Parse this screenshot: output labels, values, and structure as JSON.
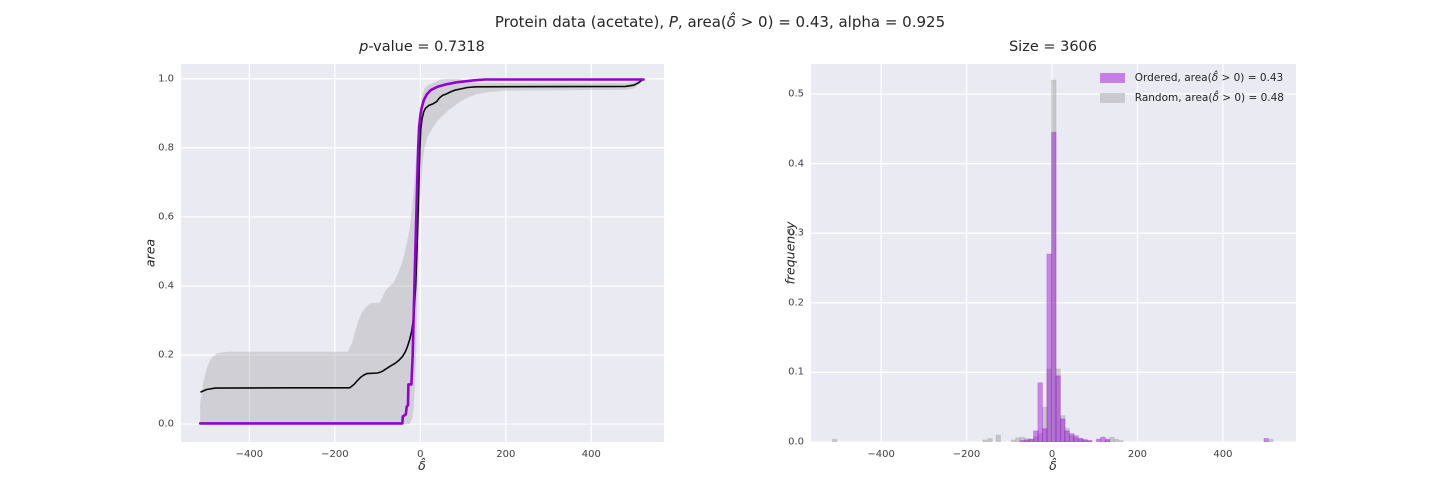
{
  "figure": {
    "suptitle_parts": {
      "pre": "Protein data (acetate), ",
      "var1": "P",
      "mid": ", area(",
      "delta": "δ̂",
      "post": " > 0) = 0.43, alpha = 0.925"
    },
    "background": "#ffffff",
    "axes_background": "#eaeaf2",
    "grid_color": "#ffffff"
  },
  "chart_data": [
    {
      "type": "line",
      "title_parts": {
        "p": "p",
        "rest": "-value = 0.7318"
      },
      "xlabel": "δ̂",
      "ylabel": "area",
      "xlim": [
        -560,
        570
      ],
      "ylim": [
        -0.052,
        1.043
      ],
      "grid": true,
      "x_ticks": [
        {
          "value": -400,
          "label": "−400"
        },
        {
          "value": -200,
          "label": "−200"
        },
        {
          "value": 0,
          "label": "0"
        },
        {
          "value": 200,
          "label": "200"
        },
        {
          "value": 400,
          "label": "400"
        }
      ],
      "y_ticks": [
        {
          "value": 0.0,
          "label": "0.0"
        },
        {
          "value": 0.2,
          "label": "0.2"
        },
        {
          "value": 0.4,
          "label": "0.4"
        },
        {
          "value": 0.6,
          "label": "0.6"
        },
        {
          "value": 0.8,
          "label": "0.8"
        },
        {
          "value": 1.0,
          "label": "1.0"
        }
      ],
      "band": {
        "name": "random-confidence-band",
        "color": "rgba(127,127,127,0.25)",
        "upper": [
          [
            -515,
            0.06
          ],
          [
            -508,
            0.12
          ],
          [
            -500,
            0.16
          ],
          [
            -490,
            0.19
          ],
          [
            -475,
            0.205
          ],
          [
            -450,
            0.21
          ],
          [
            -170,
            0.21
          ],
          [
            -160,
            0.235
          ],
          [
            -152,
            0.27
          ],
          [
            -145,
            0.3
          ],
          [
            -138,
            0.32
          ],
          [
            -130,
            0.335
          ],
          [
            -122,
            0.345
          ],
          [
            -115,
            0.35
          ],
          [
            -95,
            0.352
          ],
          [
            -88,
            0.37
          ],
          [
            -80,
            0.39
          ],
          [
            -72,
            0.4
          ],
          [
            -62,
            0.41
          ],
          [
            -55,
            0.43
          ],
          [
            -48,
            0.45
          ],
          [
            -42,
            0.47
          ],
          [
            -36,
            0.5
          ],
          [
            -30,
            0.535
          ],
          [
            -25,
            0.565
          ],
          [
            -20,
            0.62
          ],
          [
            -16,
            0.67
          ],
          [
            -12,
            0.73
          ],
          [
            -8,
            0.8
          ],
          [
            -4,
            0.87
          ],
          [
            0,
            0.915
          ],
          [
            5,
            0.955
          ],
          [
            10,
            0.972
          ],
          [
            18,
            0.982
          ],
          [
            30,
            0.988
          ],
          [
            45,
            0.997
          ],
          [
            60,
            1.0
          ],
          [
            90,
            1.0
          ],
          [
            110,
            0.993
          ],
          [
            130,
            0.988
          ],
          [
            480,
            0.988
          ],
          [
            500,
            0.99
          ],
          [
            515,
            1.0
          ],
          [
            522,
            1.0
          ]
        ],
        "lower": [
          [
            -515,
            0.0
          ],
          [
            -25,
            0.0
          ],
          [
            -18,
            0.02
          ],
          [
            -14,
            0.08
          ],
          [
            -10,
            0.2
          ],
          [
            -6,
            0.42
          ],
          [
            -2,
            0.6
          ],
          [
            2,
            0.7
          ],
          [
            6,
            0.77
          ],
          [
            10,
            0.8
          ],
          [
            15,
            0.825
          ],
          [
            22,
            0.845
          ],
          [
            30,
            0.86
          ],
          [
            40,
            0.878
          ],
          [
            52,
            0.892
          ],
          [
            65,
            0.908
          ],
          [
            80,
            0.922
          ],
          [
            95,
            0.935
          ],
          [
            110,
            0.945
          ],
          [
            130,
            0.955
          ],
          [
            160,
            0.962
          ],
          [
            200,
            0.966
          ],
          [
            480,
            0.968
          ],
          [
            500,
            0.972
          ],
          [
            512,
            0.985
          ],
          [
            522,
            0.995
          ]
        ]
      },
      "lines": [
        {
          "name": "random-mean-curve",
          "color": "#0a0a0a",
          "width": 1.6,
          "points": [
            [
              -513,
              0.093
            ],
            [
              -500,
              0.1
            ],
            [
              -480,
              0.104
            ],
            [
              -300,
              0.105
            ],
            [
              -165,
              0.105
            ],
            [
              -155,
              0.115
            ],
            [
              -148,
              0.125
            ],
            [
              -140,
              0.135
            ],
            [
              -132,
              0.142
            ],
            [
              -125,
              0.146
            ],
            [
              -100,
              0.148
            ],
            [
              -90,
              0.152
            ],
            [
              -80,
              0.16
            ],
            [
              -70,
              0.168
            ],
            [
              -60,
              0.175
            ],
            [
              -50,
              0.185
            ],
            [
              -42,
              0.195
            ],
            [
              -35,
              0.21
            ],
            [
              -30,
              0.225
            ],
            [
              -25,
              0.245
            ],
            [
              -20,
              0.27
            ],
            [
              -17,
              0.3
            ],
            [
              -14,
              0.34
            ],
            [
              -11,
              0.4
            ],
            [
              -8,
              0.5
            ],
            [
              -5,
              0.62
            ],
            [
              -3,
              0.72
            ],
            [
              -1,
              0.8
            ],
            [
              1,
              0.855
            ],
            [
              4,
              0.885
            ],
            [
              8,
              0.905
            ],
            [
              12,
              0.915
            ],
            [
              20,
              0.923
            ],
            [
              30,
              0.928
            ],
            [
              38,
              0.934
            ],
            [
              45,
              0.945
            ],
            [
              52,
              0.952
            ],
            [
              62,
              0.957
            ],
            [
              70,
              0.962
            ],
            [
              80,
              0.967
            ],
            [
              95,
              0.971
            ],
            [
              110,
              0.975
            ],
            [
              130,
              0.977
            ],
            [
              480,
              0.978
            ],
            [
              500,
              0.982
            ],
            [
              512,
              0.99
            ],
            [
              520,
              0.998
            ]
          ]
        },
        {
          "name": "ordered-curve",
          "color": "#9400d3",
          "width": 2.6,
          "points": [
            [
              -515,
              0.002
            ],
            [
              -100,
              0.002
            ],
            [
              -42,
              0.002
            ],
            [
              -41,
              0.022
            ],
            [
              -34,
              0.028
            ],
            [
              -32,
              0.05
            ],
            [
              -29,
              0.055
            ],
            [
              -28,
              0.115
            ],
            [
              -21,
              0.115
            ],
            [
              -18,
              0.2
            ],
            [
              -14,
              0.4
            ],
            [
              -10,
              0.58
            ],
            [
              -7,
              0.72
            ],
            [
              -5,
              0.8
            ],
            [
              -3,
              0.86
            ],
            [
              0,
              0.895
            ],
            [
              3,
              0.915
            ],
            [
              8,
              0.938
            ],
            [
              15,
              0.955
            ],
            [
              25,
              0.968
            ],
            [
              40,
              0.977
            ],
            [
              60,
              0.984
            ],
            [
              85,
              0.99
            ],
            [
              120,
              0.995
            ],
            [
              150,
              0.998
            ],
            [
              522,
              0.998
            ]
          ]
        }
      ]
    },
    {
      "type": "bar",
      "title": "Size = 3606",
      "xlabel": "δ̂",
      "ylabel": "frequency",
      "xlim": [
        -564,
        571
      ],
      "ylim": [
        0,
        0.5431
      ],
      "grid": true,
      "bin_width": 10.5,
      "x_ticks": [
        {
          "value": -400,
          "label": "−400"
        },
        {
          "value": -200,
          "label": "−200"
        },
        {
          "value": 0,
          "label": "0"
        },
        {
          "value": 200,
          "label": "200"
        },
        {
          "value": 400,
          "label": "400"
        }
      ],
      "y_ticks": [
        {
          "value": 0.0,
          "label": "0.0"
        },
        {
          "value": 0.1,
          "label": "0.1"
        },
        {
          "value": 0.2,
          "label": "0.2"
        },
        {
          "value": 0.3,
          "label": "0.3"
        },
        {
          "value": 0.4,
          "label": "0.4"
        },
        {
          "value": 0.5,
          "label": "0.5"
        }
      ],
      "bars": [
        {
          "name": "random-histogram",
          "fill": "rgba(128,128,128,0.35)",
          "stroke": "rgba(128,128,128,0.2)",
          "data": [
            [
              -514,
              0.004
            ],
            [
              -162,
              0.003
            ],
            [
              -150,
              0.005
            ],
            [
              -131,
              0.01
            ],
            [
              -96,
              0.003
            ],
            [
              -85,
              0.006
            ],
            [
              -75,
              0.007
            ],
            [
              -64,
              0.005
            ],
            [
              -54,
              0.004
            ],
            [
              -43,
              0.008
            ],
            [
              -33,
              0.012
            ],
            [
              -22,
              0.05
            ],
            [
              -12,
              0.105
            ],
            [
              -1,
              0.52
            ],
            [
              9,
              0.105
            ],
            [
              20,
              0.038
            ],
            [
              30,
              0.02
            ],
            [
              41,
              0.009
            ],
            [
              51,
              0.006
            ],
            [
              62,
              0.005
            ],
            [
              72,
              0.004
            ],
            [
              83,
              0.002
            ],
            [
              124,
              0.003
            ],
            [
              135,
              0.007
            ],
            [
              145,
              0.004
            ],
            [
              156,
              0.002
            ],
            [
              507,
              0.004
            ]
          ]
        },
        {
          "name": "ordered-histogram",
          "fill": "rgba(148,0,211,0.42)",
          "stroke": "rgba(148,0,211,0.3)",
          "data": [
            [
              -75,
              0.002
            ],
            [
              -64,
              0.003
            ],
            [
              -54,
              0.004
            ],
            [
              -43,
              0.016
            ],
            [
              -33,
              0.085
            ],
            [
              -22,
              0.019
            ],
            [
              -12,
              0.27
            ],
            [
              -1,
              0.445
            ],
            [
              9,
              0.095
            ],
            [
              20,
              0.033
            ],
            [
              30,
              0.016
            ],
            [
              41,
              0.012
            ],
            [
              51,
              0.009
            ],
            [
              62,
              0.005
            ],
            [
              72,
              0.003
            ],
            [
              83,
              0.002
            ],
            [
              104,
              0.004
            ],
            [
              114,
              0.007
            ],
            [
              125,
              0.004
            ],
            [
              496,
              0.005
            ]
          ]
        }
      ],
      "legend": [
        {
          "color": "#c480e6",
          "pre": "Ordered, area(",
          "delta": "δ̂",
          "post": " > 0) = 0.43"
        },
        {
          "color": "#c9c9cf",
          "pre": "Random, area(",
          "delta": "δ̂",
          "post": " > 0) = 0.48"
        }
      ],
      "legend_position": "upper right"
    }
  ]
}
